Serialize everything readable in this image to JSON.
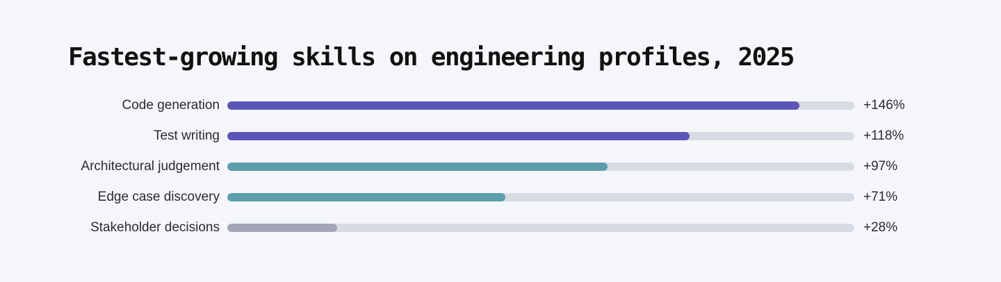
{
  "chart_data": {
    "type": "bar",
    "orientation": "horizontal",
    "title": "Fastest-growing skills on engineering profiles, 2025",
    "categories": [
      "Code generation",
      "Test writing",
      "Architectural judgement",
      "Edge case discovery",
      "Stakeholder decisions"
    ],
    "values": [
      146,
      118,
      97,
      71,
      28
    ],
    "value_labels": [
      "+146%",
      "+118%",
      "+97%",
      "+71%",
      "+28%"
    ],
    "unit": "%",
    "xlim": [
      0,
      160
    ],
    "bar_colors": [
      "#5b55b8",
      "#5b55b8",
      "#5c9eab",
      "#5c9eab",
      "#a3a4b5"
    ],
    "track_color": "#d9dbe4",
    "grid": false,
    "legend": "none"
  }
}
